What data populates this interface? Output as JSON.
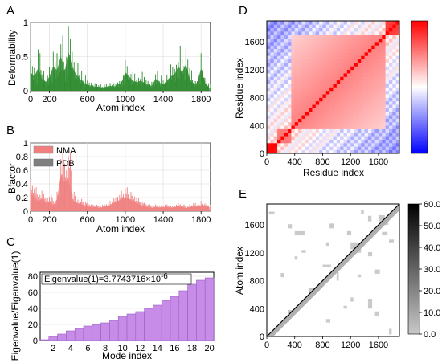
{
  "chart_data": [
    {
      "panel": "A",
      "type": "area",
      "title": "",
      "xlabel": "Atom index",
      "ylabel": "Deformability",
      "xlim": [
        0,
        1900
      ],
      "ylim": [
        0,
        1
      ],
      "x_ticks": [
        "0",
        "200",
        "600",
        "1000",
        "1400",
        "1800"
      ],
      "x_tick_values": [
        0,
        200,
        600,
        1000,
        1400,
        1800
      ],
      "y_ticks": [
        "0",
        "0.5",
        "1"
      ],
      "y_tick_values": [
        0,
        0.5,
        1
      ],
      "grid": true,
      "color": "#2e8b2e",
      "x": [
        0,
        40,
        80,
        120,
        160,
        200,
        240,
        280,
        320,
        360,
        400,
        440,
        480,
        520,
        560,
        600,
        640,
        680,
        720,
        760,
        800,
        840,
        880,
        920,
        960,
        1000,
        1040,
        1080,
        1120,
        1160,
        1200,
        1240,
        1280,
        1320,
        1360,
        1400,
        1440,
        1480,
        1520,
        1560,
        1600,
        1640,
        1680,
        1720,
        1760,
        1800,
        1840,
        1880
      ],
      "values": [
        0.45,
        0.35,
        0.55,
        0.3,
        0.2,
        0.35,
        0.6,
        0.5,
        0.85,
        0.45,
        0.95,
        0.6,
        0.4,
        0.3,
        0.2,
        0.15,
        0.12,
        0.1,
        0.1,
        0.08,
        0.1,
        0.12,
        0.1,
        0.15,
        0.2,
        0.45,
        0.35,
        0.25,
        0.2,
        0.25,
        0.2,
        0.15,
        0.12,
        0.3,
        0.2,
        0.15,
        0.25,
        0.35,
        0.4,
        0.6,
        0.45,
        0.65,
        0.3,
        0.15,
        0.2,
        0.55,
        0.2,
        0.1
      ]
    },
    {
      "panel": "B",
      "type": "area",
      "title": "",
      "xlabel": "Atom index",
      "ylabel": "Bfactor",
      "xlim": [
        0,
        1900
      ],
      "ylim": [
        0,
        1
      ],
      "x_ticks": [
        "0",
        "200",
        "600",
        "1000",
        "1400",
        "1800"
      ],
      "x_tick_values": [
        0,
        200,
        600,
        1000,
        1400,
        1800
      ],
      "y_ticks": [
        "0",
        "0.2",
        "0.4",
        "0.6",
        "0.8",
        "1"
      ],
      "y_tick_values": [
        0,
        0.2,
        0.4,
        0.6,
        0.8,
        1
      ],
      "grid": true,
      "legend": "top-left",
      "series": [
        {
          "name": "NMA",
          "color": "#f08080",
          "x": [
            0,
            40,
            80,
            120,
            160,
            200,
            240,
            280,
            320,
            360,
            400,
            440,
            480,
            520,
            560,
            600,
            640,
            680,
            720,
            760,
            800,
            840,
            880,
            920,
            960,
            1000,
            1040,
            1080,
            1120,
            1160,
            1200,
            1240,
            1280,
            1320,
            1360,
            1400,
            1440,
            1480,
            1520,
            1560,
            1600,
            1640,
            1680,
            1720,
            1760,
            1800,
            1840,
            1880
          ],
          "values": [
            0.45,
            0.35,
            0.25,
            0.3,
            0.2,
            0.25,
            0.15,
            0.3,
            0.9,
            0.7,
            0.85,
            0.3,
            0.2,
            0.18,
            0.15,
            0.12,
            0.1,
            0.1,
            0.08,
            0.1,
            0.12,
            0.15,
            0.2,
            0.25,
            0.3,
            0.35,
            0.3,
            0.25,
            0.2,
            0.15,
            0.12,
            0.1,
            0.08,
            0.1,
            0.08,
            0.1,
            0.1,
            0.08,
            0.1,
            0.12,
            0.1,
            0.08,
            0.1,
            0.12,
            0.1,
            0.15,
            0.12,
            0.1
          ]
        },
        {
          "name": "PDB",
          "color": "#808080",
          "x": [],
          "values": []
        }
      ]
    },
    {
      "panel": "C",
      "type": "bar",
      "title": "",
      "xlabel": "Mode index",
      "ylabel": "Eigenvalue/Eigenvalue(1)",
      "annotation": "Eigenvalue(1)=3.7743716×10",
      "annotation_exp": "-6",
      "categories": [
        1,
        2,
        3,
        4,
        5,
        6,
        7,
        8,
        9,
        10,
        11,
        12,
        13,
        14,
        15,
        16,
        17,
        18,
        19,
        20
      ],
      "values": [
        1,
        5,
        8,
        12,
        15,
        18,
        20,
        22,
        25,
        30,
        33,
        36,
        40,
        44,
        50,
        55,
        62,
        70,
        75,
        78
      ],
      "x_ticks": [
        "2",
        "4",
        "6",
        "8",
        "10",
        "12",
        "14",
        "16",
        "18",
        "20"
      ],
      "y_ticks": [
        "0",
        "20",
        "40",
        "60",
        "80"
      ],
      "y_tick_values": [
        0,
        20,
        40,
        60,
        80
      ],
      "ylim": [
        0,
        85
      ],
      "grid": true,
      "color": "#c68ce8"
    },
    {
      "panel": "D",
      "type": "heatmap",
      "title": "",
      "xlabel": "Residue index",
      "ylabel": "Residue index",
      "x_ticks": [
        "0",
        "400",
        "800",
        "1200",
        "1600"
      ],
      "y_ticks": [
        "0",
        "400",
        "800",
        "1200",
        "1600"
      ],
      "tick_values": [
        0,
        400,
        800,
        1200,
        1600
      ],
      "range": [
        0,
        1900
      ],
      "colorscale": [
        "#0000ff",
        "#ffffff",
        "#ff0000"
      ],
      "blocks": [
        {
          "start": 0,
          "end": 140,
          "sign": 1,
          "strength": 1.0
        },
        {
          "start": 140,
          "end": 350,
          "sign": 1,
          "strength": 0.55
        },
        {
          "start": 350,
          "end": 1700,
          "sign": 1,
          "strength": 0.5
        },
        {
          "start": 1700,
          "end": 1900,
          "sign": 1,
          "strength": 0.8
        }
      ]
    },
    {
      "panel": "E",
      "type": "heatmap",
      "title": "",
      "xlabel": "",
      "ylabel": "Atom index",
      "x_ticks": [
        "0",
        "400",
        "800",
        "1200",
        "1600"
      ],
      "y_ticks": [
        "0",
        "400",
        "800",
        "1200",
        "1600"
      ],
      "tick_values": [
        0,
        400,
        800,
        1200,
        1600
      ],
      "range": [
        0,
        1900
      ],
      "colorbar_ticks": [
        "60.0",
        "50.0",
        "40.0",
        "30.0",
        "20.0",
        "10.0",
        "0.0"
      ],
      "colorbar_values": [
        60,
        50,
        40,
        30,
        20,
        10,
        0
      ],
      "colorscale": [
        "#c8c8c8",
        "#000000"
      ]
    }
  ],
  "panels": {
    "A": "A",
    "B": "B",
    "C": "C",
    "D": "D",
    "E": "E"
  }
}
